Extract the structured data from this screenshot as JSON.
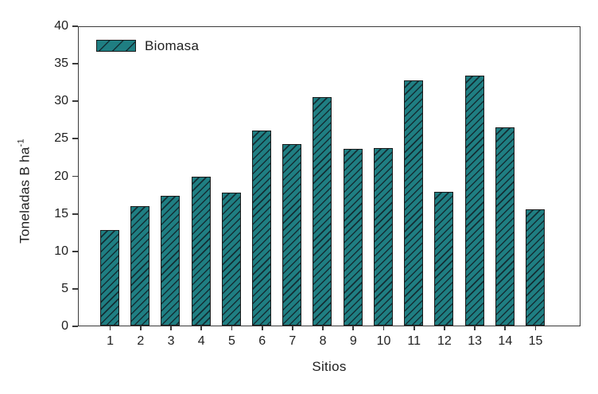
{
  "chart_data": {
    "type": "bar",
    "title": "",
    "xlabel": "Sitios",
    "ylabel": "Toneladas B ha⁻¹",
    "ylabel_base": "Toneladas B ha",
    "ylabel_superscript": "-1",
    "categories": [
      "1",
      "2",
      "3",
      "4",
      "5",
      "6",
      "7",
      "8",
      "9",
      "10",
      "11",
      "12",
      "13",
      "14",
      "15"
    ],
    "series": [
      {
        "name": "Biomasa",
        "values": [
          12.8,
          16.0,
          17.4,
          19.9,
          17.8,
          26.1,
          24.3,
          30.6,
          23.7,
          23.8,
          32.8,
          17.9,
          33.5,
          26.5,
          15.6
        ]
      }
    ],
    "ylim": [
      0,
      40
    ],
    "y_ticks": [
      0,
      5,
      10,
      15,
      20,
      25,
      30,
      35,
      40
    ],
    "grid": false,
    "legend": {
      "labels": [
        "Biomasa"
      ],
      "position": "top-left-inside"
    },
    "style": {
      "bar_fill": "#1f7e82",
      "bar_hatch_color": "#132e34",
      "bar_border": "#1b1b1b",
      "hatch_direction": "forward-diagonal",
      "axis_color": "#3a3a3a",
      "text_color": "#1f1f1f",
      "background": "#ffffff"
    }
  }
}
